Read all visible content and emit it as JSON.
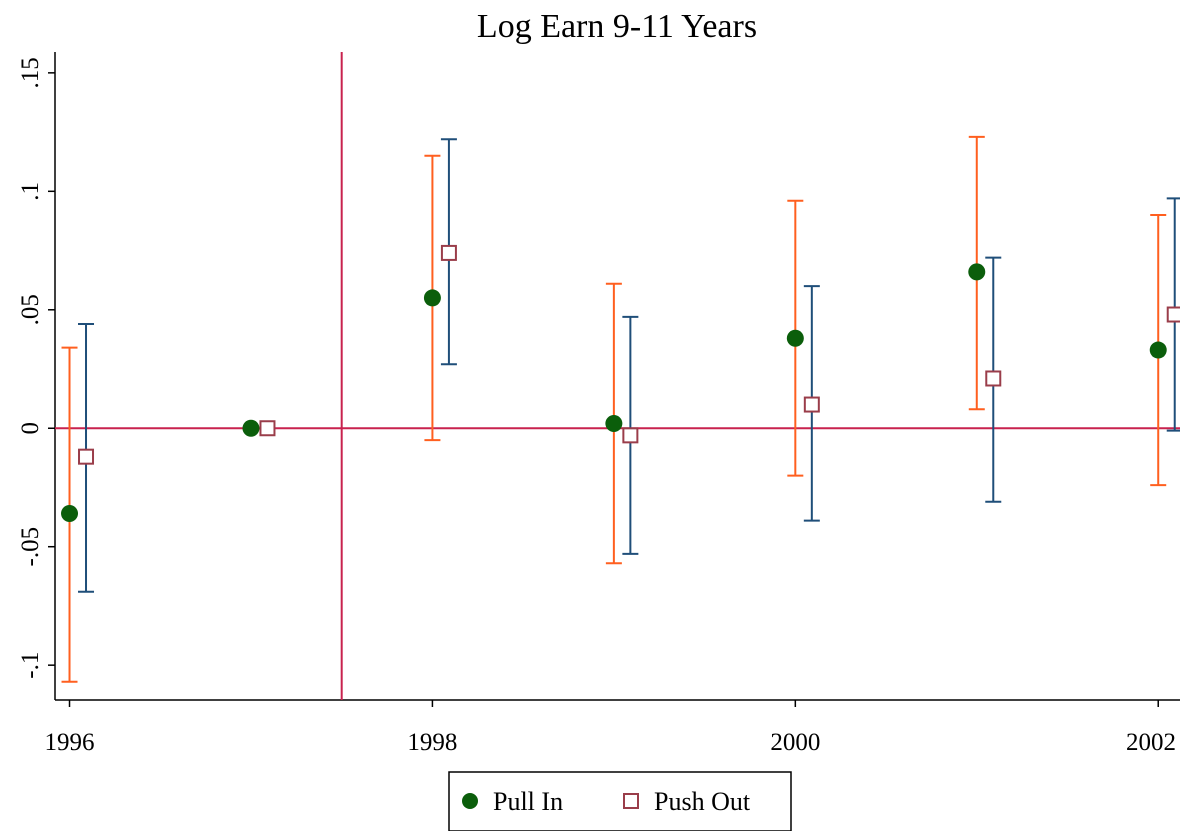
{
  "chart_data": {
    "type": "scatter",
    "title": "Log Earn 9-11 Years",
    "xlabel": "",
    "ylabel": "",
    "xlim": [
      1995.92,
      2002.12
    ],
    "ylim": [
      -0.1147,
      0.1588
    ],
    "x_ticks": [
      {
        "value": 1996,
        "label": "1996"
      },
      {
        "value": 1998,
        "label": "1998"
      },
      {
        "value": 2000,
        "label": "2000"
      },
      {
        "value": 2002,
        "label": "2002"
      }
    ],
    "y_ticks": [
      {
        "value": -0.1,
        "label": "-.1"
      },
      {
        "value": -0.05,
        "label": "-.05"
      },
      {
        "value": 0,
        "label": "0"
      },
      {
        "value": 0.05,
        "label": ".05"
      },
      {
        "value": 0.1,
        "label": ".1"
      },
      {
        "value": 0.15,
        "label": ".15"
      }
    ],
    "reference_lines": {
      "x": 1997.5,
      "y": 0
    },
    "grid": false,
    "legend_position": "bottom",
    "series": [
      {
        "name": "Pull In",
        "marker": "filled-circle",
        "marker_color": "#0b5e0b",
        "ci_color": "#ff5f1f",
        "points": [
          {
            "x": 1996,
            "y": -0.036,
            "lo": -0.107,
            "hi": 0.034
          },
          {
            "x": 1997,
            "y": 0.0,
            "lo": null,
            "hi": null
          },
          {
            "x": 1998,
            "y": 0.055,
            "lo": -0.005,
            "hi": 0.115
          },
          {
            "x": 1999,
            "y": 0.002,
            "lo": -0.057,
            "hi": 0.061
          },
          {
            "x": 2000,
            "y": 0.038,
            "lo": -0.02,
            "hi": 0.096
          },
          {
            "x": 2001,
            "y": 0.066,
            "lo": 0.008,
            "hi": 0.123
          },
          {
            "x": 2002,
            "y": 0.033,
            "lo": -0.024,
            "hi": 0.09
          }
        ]
      },
      {
        "name": "Push Out",
        "marker": "hollow-square",
        "marker_color": "#9a3d4a",
        "ci_color": "#1f4e79",
        "points": [
          {
            "x": 1996,
            "y": -0.012,
            "lo": -0.069,
            "hi": 0.044
          },
          {
            "x": 1997,
            "y": 0.0,
            "lo": null,
            "hi": null
          },
          {
            "x": 1998,
            "y": 0.074,
            "lo": 0.027,
            "hi": 0.122
          },
          {
            "x": 1999,
            "y": -0.003,
            "lo": -0.053,
            "hi": 0.047
          },
          {
            "x": 2000,
            "y": 0.01,
            "lo": -0.039,
            "hi": 0.06
          },
          {
            "x": 2001,
            "y": 0.021,
            "lo": -0.031,
            "hi": 0.072
          },
          {
            "x": 2002,
            "y": 0.048,
            "lo": -0.001,
            "hi": 0.097
          }
        ]
      }
    ],
    "colors": {
      "reference_line": "#c8224e",
      "axis": "#000000"
    }
  }
}
